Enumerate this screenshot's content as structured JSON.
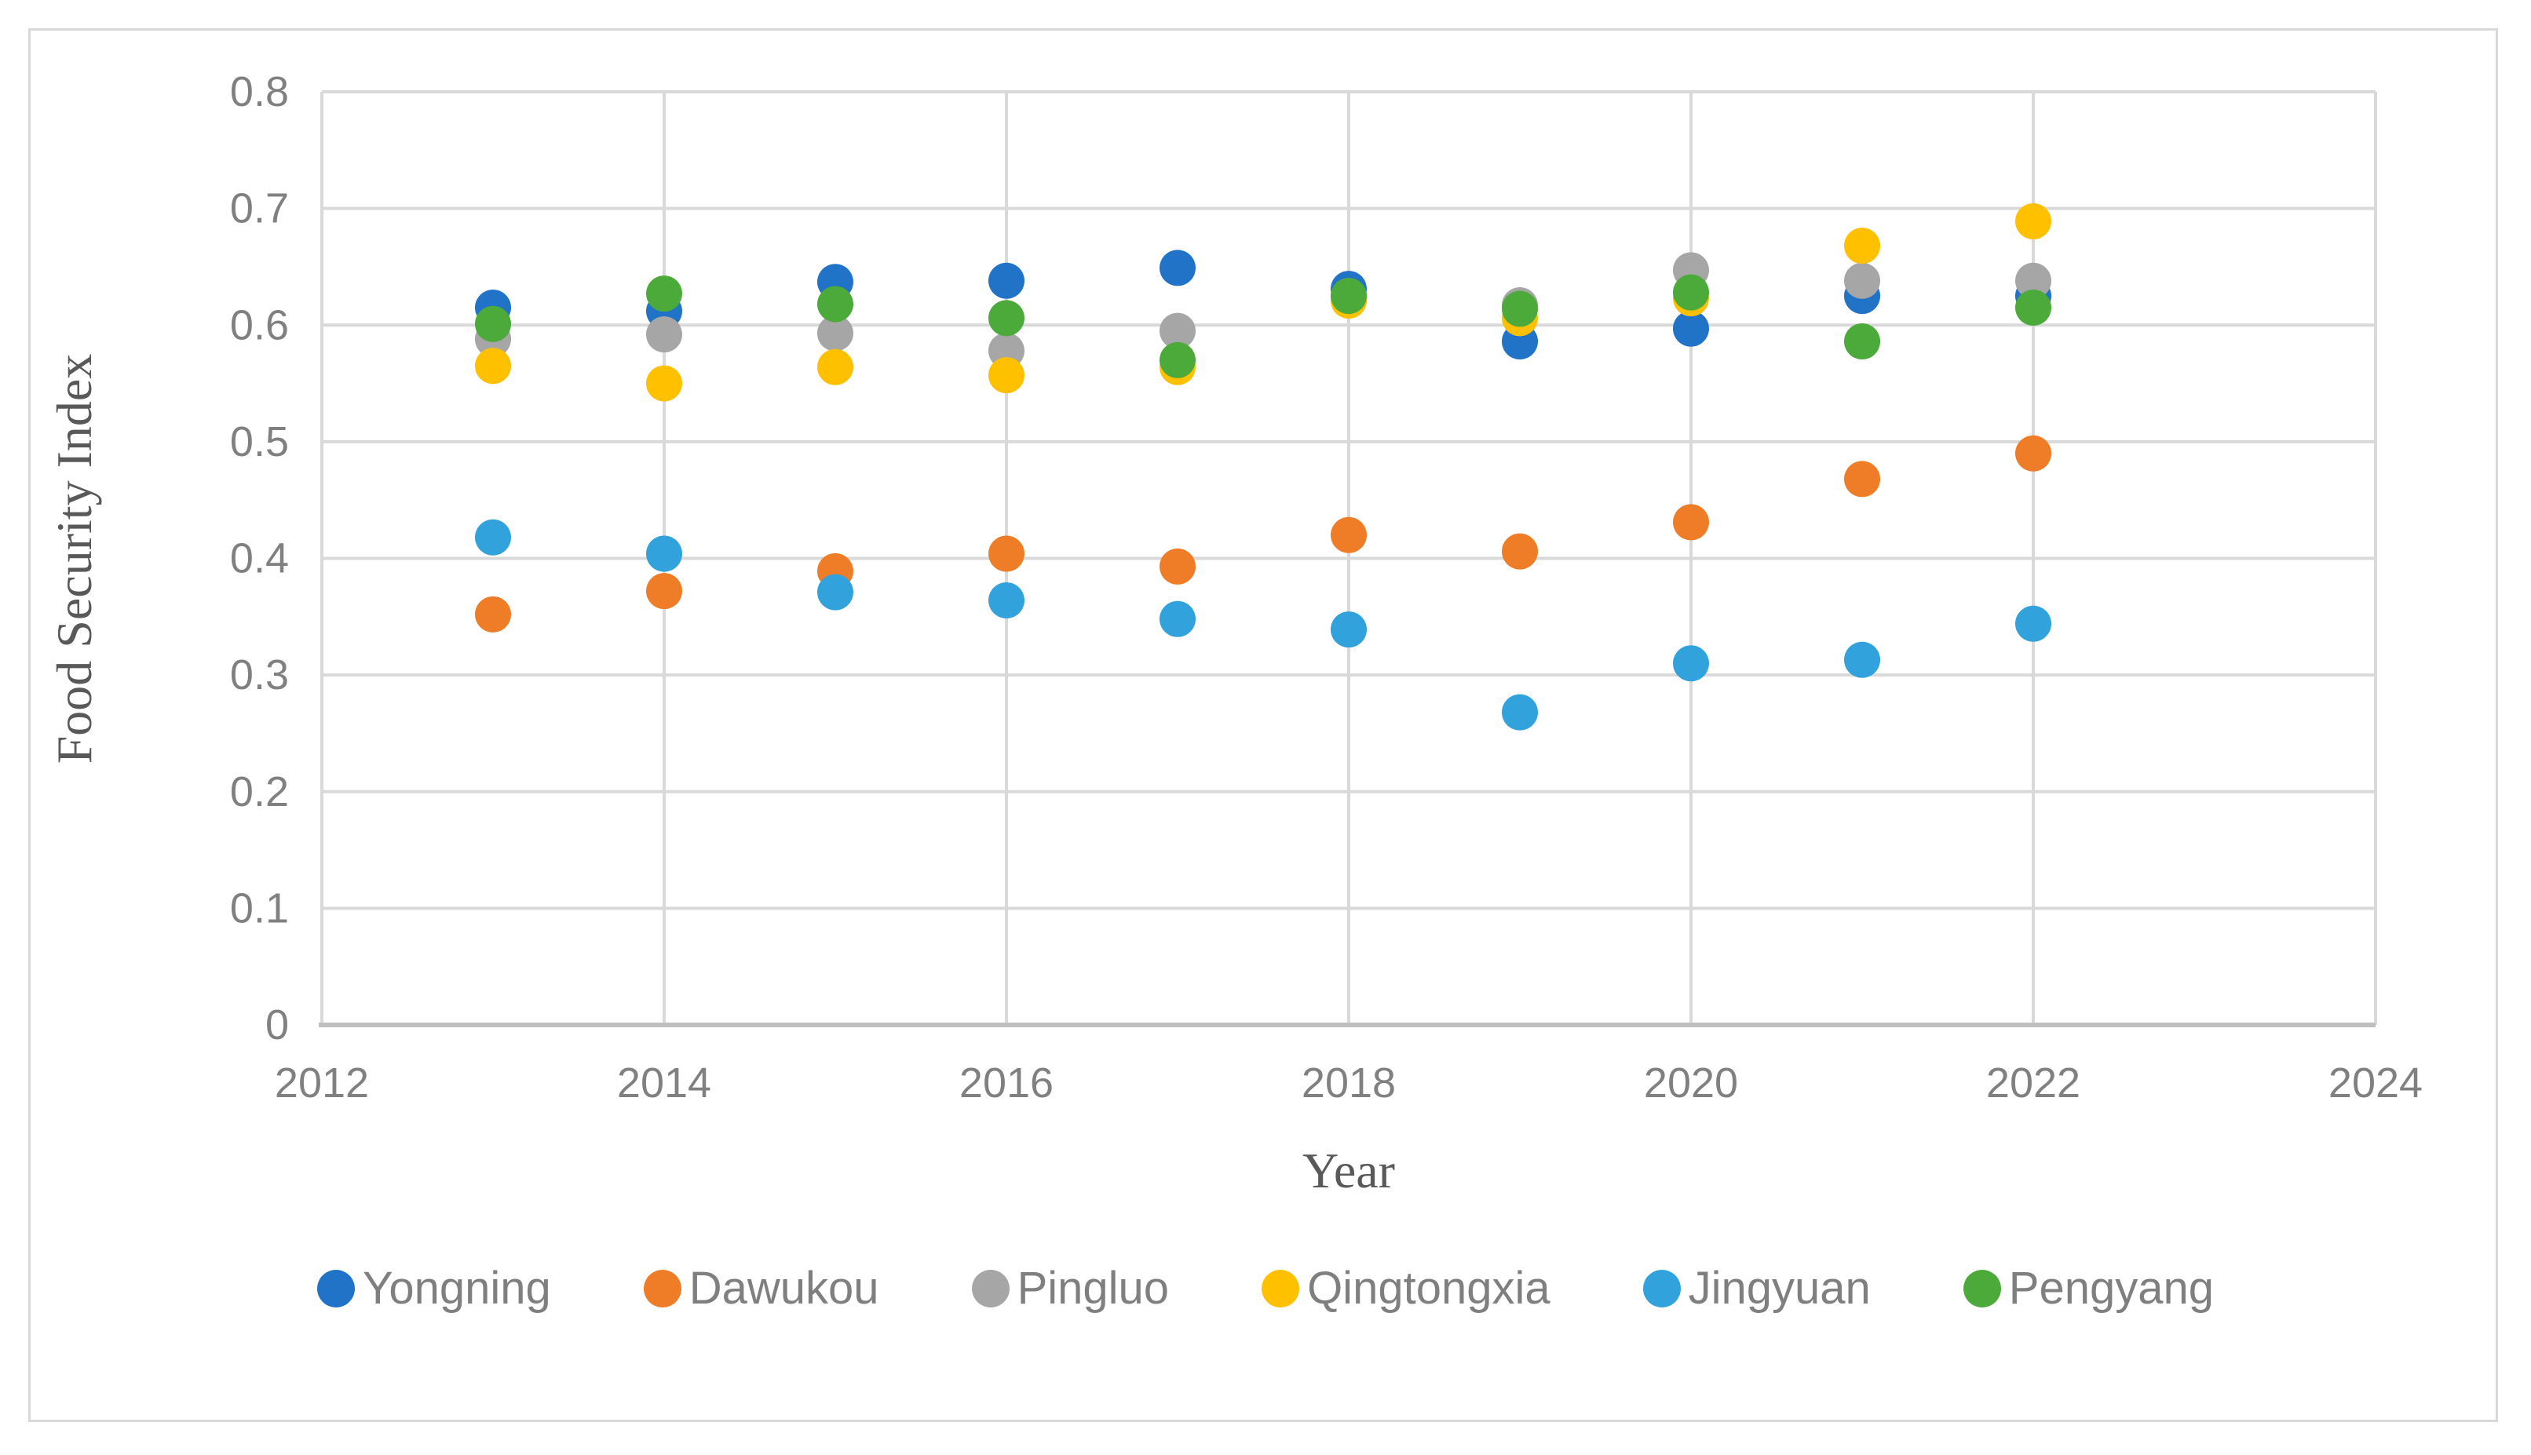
{
  "figure": {
    "background": "#FFFFFF",
    "frame_border_color": "#D9D9D9"
  },
  "chart_data": {
    "type": "scatter",
    "title": "",
    "xlabel": "Year",
    "ylabel": "Food Security Index",
    "xlim": [
      2012,
      2024
    ],
    "ylim": [
      0,
      0.8
    ],
    "grid": true,
    "legend_position": "bottom",
    "x_tick_labels": [
      "2012",
      "2014",
      "2016",
      "2018",
      "2020",
      "2022",
      "2024"
    ],
    "x_ticks": [
      2012,
      2014,
      2016,
      2018,
      2020,
      2022,
      2024
    ],
    "y_tick_labels": [
      "0",
      "0.1",
      "0.2",
      "0.3",
      "0.4",
      "0.5",
      "0.6",
      "0.7",
      "0.8"
    ],
    "y_ticks": [
      0,
      0.1,
      0.2,
      0.3,
      0.4,
      0.5,
      0.6,
      0.7,
      0.8
    ],
    "x": [
      2013,
      2014,
      2015,
      2016,
      2017,
      2018,
      2019,
      2020,
      2021,
      2022
    ],
    "series": [
      {
        "name": "Yongning",
        "color": "#2073C6",
        "values": [
          0.615,
          0.612,
          0.637,
          0.638,
          0.649,
          0.631,
          0.586,
          0.597,
          0.625,
          0.625
        ]
      },
      {
        "name": "Dawukou",
        "color": "#EF7D28",
        "values": [
          0.352,
          0.372,
          0.389,
          0.404,
          0.393,
          0.42,
          0.406,
          0.431,
          0.468,
          0.49
        ]
      },
      {
        "name": "Pingluo",
        "color": "#A6A6A6",
        "values": [
          0.588,
          0.592,
          0.593,
          0.578,
          0.595,
          0.625,
          0.617,
          0.647,
          0.638,
          0.638
        ]
      },
      {
        "name": "Qingtongxia",
        "color": "#FFC000",
        "values": [
          0.565,
          0.55,
          0.564,
          0.557,
          0.564,
          0.621,
          0.606,
          0.623,
          0.668,
          0.689
        ]
      },
      {
        "name": "Jingyuan",
        "color": "#32A2DC",
        "values": [
          0.418,
          0.404,
          0.371,
          0.364,
          0.348,
          0.339,
          0.268,
          0.31,
          0.313,
          0.344
        ]
      },
      {
        "name": "Pengyang",
        "color": "#4CAA3B",
        "values": [
          0.601,
          0.627,
          0.618,
          0.606,
          0.57,
          0.625,
          0.614,
          0.628,
          0.586,
          0.615
        ]
      }
    ],
    "style": {
      "gridline_color": "#D9D9D9",
      "axis_line_color": "#BFBFBF",
      "tick_label_color": "#808080",
      "marker_radius": 23
    }
  }
}
